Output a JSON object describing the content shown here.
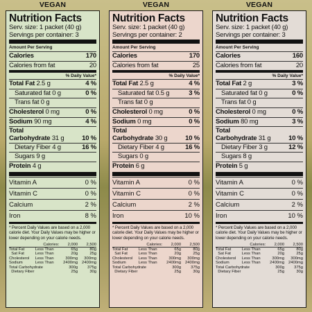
{
  "panels": [
    {
      "badge": "VEGAN",
      "title": "Nutrition Facts",
      "serving_size": "Serv. size: 1 packet (40 g)",
      "servings": "Servings per container: 3",
      "amount_per_serving": "Amount Per Serving",
      "calories_label": "Calories",
      "calories": "170",
      "cal_fat_label": "Calories from fat",
      "cal_fat": "20",
      "dv_header": "% Daily Value*",
      "total_fat_label": "Total Fat",
      "total_fat": "2.5 g",
      "total_fat_pct": "4 %",
      "sat_fat_label": "Saturated fat",
      "sat_fat": "0 g",
      "sat_fat_pct": "0 %",
      "trans_fat_label": "Trans fat",
      "trans_fat": "0 g",
      "cholesterol_label": "Cholesterol",
      "cholesterol": "0 mg",
      "cholesterol_pct": "0 %",
      "sodium_label": "Sodium",
      "sodium": "90 mg",
      "sodium_pct": "4 %",
      "carb_label_1": "Total",
      "carb_label_2": "Carbohydrate",
      "carb": "31 g",
      "carb_pct": "10 %",
      "fiber_label": "Dietary Fiber",
      "fiber": "4 g",
      "fiber_pct": "16 %",
      "sugars_label": "Sugars",
      "sugars": "9 g",
      "protein_label": "Protein",
      "protein": "4 g",
      "vit_a_label": "Vitamin A",
      "vit_a": "0 %",
      "vit_c_label": "Vitamin C",
      "vit_c": "0 %",
      "calcium_label": "Calcium",
      "calcium": "2 %",
      "iron_label": "Iron",
      "iron": "8 %"
    },
    {
      "badge": "VEGAN",
      "title": "Nutrition Facts",
      "serving_size": "Serv. size: 1 packet (40 g)",
      "servings": "Servings per container: 2",
      "amount_per_serving": "Amount Per Serving",
      "calories_label": "Calories",
      "calories": "170",
      "cal_fat_label": "Calories from fat",
      "cal_fat": "25",
      "dv_header": "% Daily Value*",
      "total_fat_label": "Total Fat",
      "total_fat": "2.5 g",
      "total_fat_pct": "4 %",
      "sat_fat_label": "Saturated fat",
      "sat_fat": "0.5 g",
      "sat_fat_pct": "3 %",
      "trans_fat_label": "Trans fat",
      "trans_fat": "0 g",
      "cholesterol_label": "Cholesterol",
      "cholesterol": "0 mg",
      "cholesterol_pct": "0 %",
      "sodium_label": "Sodium",
      "sodium": "0 mg",
      "sodium_pct": "0 %",
      "carb_label_1": "Total",
      "carb_label_2": "Carbohydrate",
      "carb": "30 g",
      "carb_pct": "10 %",
      "fiber_label": "Dietary Fiber",
      "fiber": "4 g",
      "fiber_pct": "16 %",
      "sugars_label": "Sugars",
      "sugars": "0 g",
      "protein_label": "Protein",
      "protein": "6 g",
      "vit_a_label": "Vitamin A",
      "vit_a": "0 %",
      "vit_c_label": "Vitamin C",
      "vit_c": "0 %",
      "calcium_label": "Calcium",
      "calcium": "2 %",
      "iron_label": "Iron",
      "iron": "10 %"
    },
    {
      "badge": "VEGAN",
      "title": "Nutrition Facts",
      "serving_size": "Serv. size: 1 packet (40 g)",
      "servings": "Servings per container: 3",
      "amount_per_serving": "Amount Per Serving",
      "calories_label": "Calories",
      "calories": "160",
      "cal_fat_label": "Calories from fat",
      "cal_fat": "20",
      "dv_header": "% Daily Value*",
      "total_fat_label": "Total Fat",
      "total_fat": "2 g",
      "total_fat_pct": "3 %",
      "sat_fat_label": "Saturated fat",
      "sat_fat": "0 g",
      "sat_fat_pct": "0 %",
      "trans_fat_label": "Trans fat",
      "trans_fat": "0 g",
      "cholesterol_label": "Cholesterol",
      "cholesterol": "0 mg",
      "cholesterol_pct": "0 %",
      "sodium_label": "Sodium",
      "sodium": "80 mg",
      "sodium_pct": "3 %",
      "carb_label_1": "Total",
      "carb_label_2": "Carbohydrate",
      "carb": "31 g",
      "carb_pct": "10 %",
      "fiber_label": "Dietary Fiber",
      "fiber": "3 g",
      "fiber_pct": "12 %",
      "sugars_label": "Sugars",
      "sugars": "8 g",
      "protein_label": "Protein",
      "protein": "5 g",
      "vit_a_label": "Vitamin A",
      "vit_a": "0 %",
      "vit_c_label": "Vitamin C",
      "vit_c": "0 %",
      "calcium_label": "Calcium",
      "calcium": "2 %",
      "iron_label": "Iron",
      "iron": "10 %"
    }
  ],
  "footnote": "* Percent Daily Values are based on a 2,000 calorie diet. Your Daily Values may be higher or lower depending on your calorie needs.",
  "dv_table": {
    "header": [
      "Calories:",
      "2,000",
      "2,500"
    ],
    "rows": [
      [
        "Total Fat",
        "Less Than",
        "65g",
        "80g"
      ],
      [
        "Sat Fat",
        "Less Than",
        "20g",
        "25g"
      ],
      [
        "Cholesterol",
        "Less Than",
        "300mg",
        "300mg"
      ],
      [
        "Sodium",
        "Less Than",
        "2400mg",
        "2400mg"
      ],
      [
        "Total Carbohydrate",
        "",
        "300g",
        "375g"
      ],
      [
        "Dietary Fiber",
        "",
        "25g",
        "30g"
      ]
    ]
  }
}
